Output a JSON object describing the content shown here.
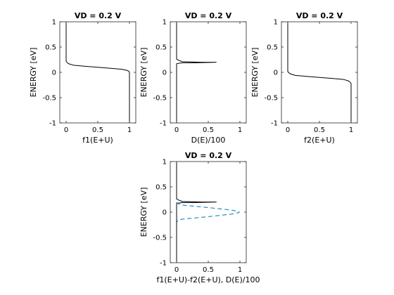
{
  "chart_data": [
    {
      "type": "line",
      "title": "VD = 0.2 V",
      "xlabel": "f1(E+U)",
      "ylabel": "ENERGY  [eV]",
      "xlim": [
        -0.1,
        1.1
      ],
      "ylim": [
        -1,
        1
      ],
      "xticks": [
        "0",
        "0.5",
        "1"
      ],
      "yticks": [
        "1",
        "0.5",
        "0",
        "-0.5",
        "-1"
      ],
      "grid": false,
      "series": [
        {
          "style": "solid",
          "color": "#000000",
          "x": [
            0,
            0,
            0.01,
            0.04,
            0.12,
            0.3,
            0.5,
            0.7,
            0.88,
            0.96,
            0.99,
            1,
            1
          ],
          "y": [
            1,
            0.22,
            0.2,
            0.17,
            0.14,
            0.12,
            0.1,
            0.08,
            0.06,
            0.04,
            0.02,
            0,
            -1
          ]
        }
      ]
    },
    {
      "type": "line",
      "title": "VD = 0.2 V",
      "xlabel": "D(E)/100",
      "ylabel": "ENERGY  [eV]",
      "xlim": [
        -0.1,
        1.1
      ],
      "ylim": [
        -1,
        1
      ],
      "xticks": [
        "0",
        "0.5",
        "1"
      ],
      "yticks": [
        "1",
        "0.5",
        "0",
        "-0.5",
        "-1"
      ],
      "grid": false,
      "series": [
        {
          "style": "solid",
          "color": "#000000",
          "x": [
            0,
            0,
            0.03,
            0.09,
            0.4,
            0.63,
            0.3,
            0.1,
            0.04,
            0,
            0
          ],
          "y": [
            1,
            0.26,
            0.24,
            0.21,
            0.2,
            0.2,
            0.19,
            0.19,
            0.18,
            0.17,
            -1
          ]
        }
      ]
    },
    {
      "type": "line",
      "title": "VD = 0.2 V",
      "xlabel": "f2(E+U)",
      "ylabel": "ENERGY  [eV]",
      "xlim": [
        -0.1,
        1.1
      ],
      "ylim": [
        -1,
        1
      ],
      "xticks": [
        "0",
        "0.5",
        "1"
      ],
      "yticks": [
        "1",
        "0.5",
        "0",
        "-0.5",
        "-1"
      ],
      "grid": false,
      "series": [
        {
          "style": "solid",
          "color": "#000000",
          "x": [
            0,
            0,
            0.01,
            0.04,
            0.12,
            0.3,
            0.5,
            0.7,
            0.88,
            0.96,
            0.99,
            1,
            1
          ],
          "y": [
            1,
            0.02,
            0,
            -0.03,
            -0.06,
            -0.08,
            -0.1,
            -0.12,
            -0.14,
            -0.17,
            -0.2,
            -0.22,
            -1
          ]
        }
      ]
    },
    {
      "type": "line",
      "title": "VD = 0.2 V",
      "xlabel": "f1(E+U)-f2(E+U), D(E)/100",
      "ylabel": "ENERGY  [eV]",
      "xlim": [
        -0.1,
        1.1
      ],
      "ylim": [
        -1,
        1
      ],
      "xticks": [
        "0",
        "0.5",
        "1"
      ],
      "yticks": [
        "1",
        "0.5",
        "0",
        "-0.5",
        "-1"
      ],
      "grid": false,
      "series": [
        {
          "style": "solid",
          "color": "#000000",
          "x": [
            0,
            0,
            0.03,
            0.09,
            0.4,
            0.63,
            0.3,
            0.1,
            0.04,
            0,
            0
          ],
          "y": [
            1,
            0.26,
            0.24,
            0.21,
            0.2,
            0.2,
            0.19,
            0.19,
            0.18,
            0.17,
            -1
          ]
        },
        {
          "style": "dashed",
          "color": "#0072bd",
          "x": [
            0,
            0.02,
            0.08,
            0.25,
            0.5,
            0.72,
            0.87,
            0.95,
            0.98,
            0.99,
            0.98,
            0.95,
            0.87,
            0.72,
            0.5,
            0.25,
            0.08,
            0.02,
            0
          ],
          "y": [
            0.2,
            0.17,
            0.14,
            0.12,
            0.09,
            0.06,
            0.04,
            0.02,
            0.01,
            0,
            -0.01,
            -0.02,
            -0.04,
            -0.06,
            -0.09,
            -0.12,
            -0.14,
            -0.17,
            -0.2
          ]
        }
      ]
    }
  ]
}
